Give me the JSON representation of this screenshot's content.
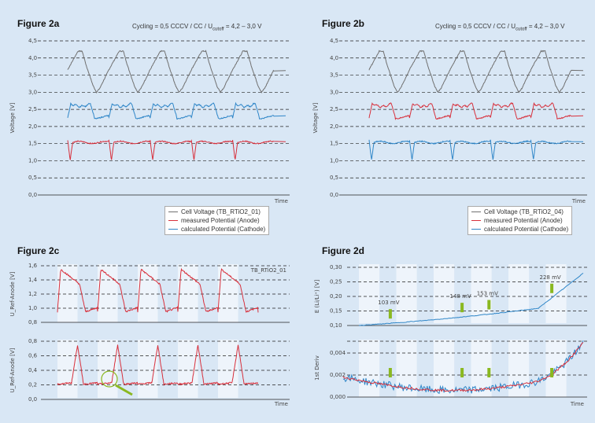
{
  "figures": {
    "a": {
      "title": "Figure 2a",
      "cycling": "Cycling = 0,5 CCCV / CC / U",
      "cycling_sub": "cutoff",
      "cycling_tail": " = 4,2 – 3,0 V"
    },
    "b": {
      "title": "Figure 2b",
      "cycling": "Cycling = 0,5 CCCV / CC / U",
      "cycling_sub": "cutoff",
      "cycling_tail": " = 4,2 – 3,0 V"
    },
    "c": {
      "title": "Figure 2c"
    },
    "d": {
      "title": "Figure 2d"
    }
  },
  "legend_a": [
    "Cell Voltage (TB_RTiO2_01)",
    "measured Potential (Anode)",
    "calculated Potential (Cathode)"
  ],
  "legend_b": [
    "Cell Voltage (TB_RTiO2_04)",
    "measured Potential (Anode)",
    "calculated Potential (Cathode)"
  ],
  "colors": {
    "cell": "#707070",
    "anode": "#d8303c",
    "cathode": "#2f86c8",
    "arrow": "#8ab820"
  },
  "chart_data": [
    {
      "id": "2a",
      "type": "line",
      "title": "Figure 2a",
      "xlabel": "Time",
      "ylabel": "Voltage [V]",
      "ylim": [
        0,
        4.5
      ],
      "yticks": [
        "0,0",
        "0,5",
        "1,0",
        "1,5",
        "2,0",
        "2,5",
        "3,0",
        "3,5",
        "4,0",
        "4,5"
      ],
      "cycles": 5,
      "series": [
        {
          "name": "Cell Voltage (TB_RTiO2_01)",
          "role": "cell",
          "max": 4.2,
          "min": 3.0,
          "shape": "cell"
        },
        {
          "name": "measured Potential (Anode)",
          "role": "anode",
          "max": 1.6,
          "min": 0.95,
          "shape": "down"
        },
        {
          "name": "calculated Potential (Cathode)",
          "role": "cathode",
          "max": 2.75,
          "min": 2.2,
          "shape": "up"
        }
      ],
      "legend": [
        "Cell Voltage (TB_RTiO2_01)",
        "measured Potential (Anode)",
        "calculated Potential (Cathode)"
      ]
    },
    {
      "id": "2b",
      "type": "line",
      "title": "Figure 2b",
      "xlabel": "Time",
      "ylabel": "Voltage [V]",
      "ylim": [
        0,
        4.5
      ],
      "yticks": [
        "0,0",
        "0,5",
        "1,0",
        "1,5",
        "2,0",
        "2,5",
        "3,0",
        "3,5",
        "4,0",
        "4,5"
      ],
      "cycles": 5,
      "series": [
        {
          "name": "Cell Voltage (TB_RTiO2_04)",
          "role": "cell",
          "max": 4.2,
          "min": 3.0,
          "shape": "cell"
        },
        {
          "name": "measured Potential (Anode)",
          "role": "anode",
          "max": 2.75,
          "min": 2.2,
          "shape": "up"
        },
        {
          "name": "calculated Potential (Cathode)",
          "role": "cathode",
          "max": 1.6,
          "min": 0.95,
          "shape": "down"
        }
      ],
      "legend": [
        "Cell Voltage (TB_RTiO2_04)",
        "measured Potential (Anode)",
        "calculated Potential (Cathode)"
      ]
    },
    {
      "id": "2c",
      "type": "line",
      "title": "Figure 2c",
      "xlabel": "Time",
      "label": "TB_RTiO2_01",
      "upper": {
        "ylabel": "U_Ref-Anode [V]",
        "ylim": [
          0.8,
          1.6
        ],
        "yticks": [
          "0,8",
          "1,0",
          "1,2",
          "1,4",
          "1,6"
        ],
        "max": 1.55,
        "min": 0.95
      },
      "lower": {
        "ylabel": "U_Ref-Anode [V]",
        "ylim": [
          0.0,
          0.8
        ],
        "yticks": [
          "0,0",
          "0,2",
          "0,4",
          "0,6",
          "0,8"
        ],
        "max": 0.75,
        "min": 0.18
      },
      "cycles": 5
    },
    {
      "id": "2d",
      "type": "line",
      "title": "Figure 2d",
      "xlabel": "Time",
      "upper": {
        "ylabel": "E (Li/Li⁺) [V]",
        "ylim": [
          0.1,
          0.3
        ],
        "yticks": [
          "0,10",
          "0,15",
          "0,20",
          "0,25",
          "0,30"
        ],
        "start": 0.1,
        "end": 0.3
      },
      "lower": {
        "ylabel": "1st Deriv",
        "ylim": [
          0.0,
          0.006
        ],
        "yticks": [
          "0,000",
          "0,002",
          "0,004"
        ]
      },
      "annotations": [
        {
          "text": "103 mV",
          "x": 0.14
        },
        {
          "text": "148 mV",
          "x": 0.46
        },
        {
          "text": "153 mV",
          "x": 0.58
        },
        {
          "text": "228 mV",
          "x": 0.86
        }
      ]
    }
  ]
}
